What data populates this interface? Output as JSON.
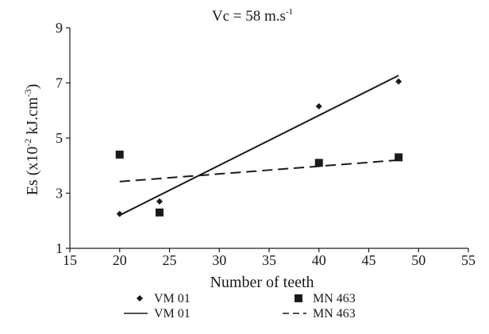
{
  "chart_data": {
    "type": "scatter",
    "title": "Vc = 58 m.s",
    "title_superscript": "-1",
    "xlabel": "Number of teeth",
    "ylabel": "Es (x10",
    "ylabel_sup1": "-2",
    "ylabel_mid": " kJ.cm",
    "ylabel_sup2": "-3",
    "ylabel_end": ")",
    "xlim": [
      15,
      55
    ],
    "ylim": [
      1,
      9
    ],
    "xticks": [
      15,
      20,
      25,
      30,
      35,
      40,
      45,
      50,
      55
    ],
    "yticks": [
      1,
      3,
      5,
      7,
      9
    ],
    "grid": false,
    "legend_position": "bottom",
    "series": [
      {
        "name": "VM 01",
        "marker": "diamond",
        "color": "#1a1a1a",
        "x": [
          20,
          24,
          40,
          48
        ],
        "y": [
          2.25,
          2.7,
          6.15,
          7.05
        ]
      },
      {
        "name": "MN 463",
        "marker": "square",
        "color": "#1a1a1a",
        "x": [
          20,
          24,
          40,
          48
        ],
        "y": [
          4.4,
          2.3,
          4.1,
          4.3
        ]
      }
    ],
    "trendlines": [
      {
        "name": "VM 01",
        "style": "solid",
        "color": "#1a1a1a",
        "x": [
          20,
          48
        ],
        "y": [
          2.2,
          7.27
        ]
      },
      {
        "name": "MN 463",
        "style": "dashed",
        "color": "#1a1a1a",
        "x": [
          20,
          48
        ],
        "y": [
          3.42,
          4.2
        ]
      }
    ]
  }
}
